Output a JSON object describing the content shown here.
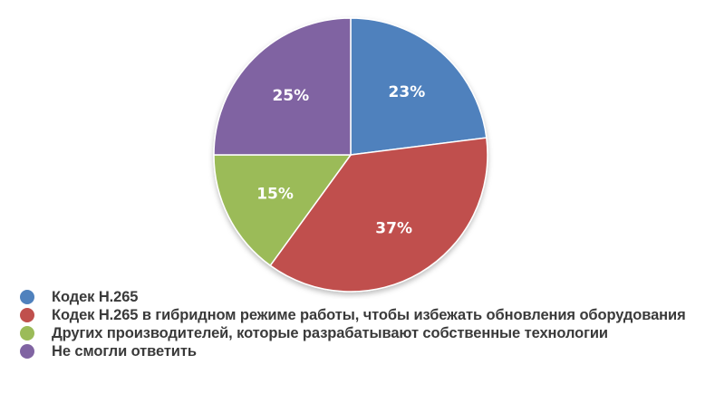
{
  "chart_data": {
    "type": "pie",
    "title": "",
    "start_angle": "12 o'clock",
    "direction": "clockwise",
    "categories": [
      "Кодек H.265",
      "Кодек H.265 в гибридном режиме работы, чтобы избежать обновления оборудования",
      "Других производителей, которые разрабатывают собственные технологии",
      "Не смогли ответить"
    ],
    "values": [
      23,
      37,
      15,
      25
    ],
    "labels": [
      "23%",
      "37%",
      "15%",
      "25%"
    ],
    "colors": [
      "#4f81bd",
      "#c0504d",
      "#9bbb59",
      "#8064a2"
    ],
    "legend_position": "bottom-left"
  },
  "legend": {
    "items": [
      {
        "label": "Кодек H.265",
        "color": "#4f81bd"
      },
      {
        "label": "Кодек H.265 в гибридном режиме работы, чтобы избежать обновления оборудования",
        "color": "#c0504d"
      },
      {
        "label": "Других производителей, которые разрабатывают собственные технологии",
        "color": "#9bbb59"
      },
      {
        "label": "Не смогли ответить",
        "color": "#8064a2"
      }
    ]
  }
}
